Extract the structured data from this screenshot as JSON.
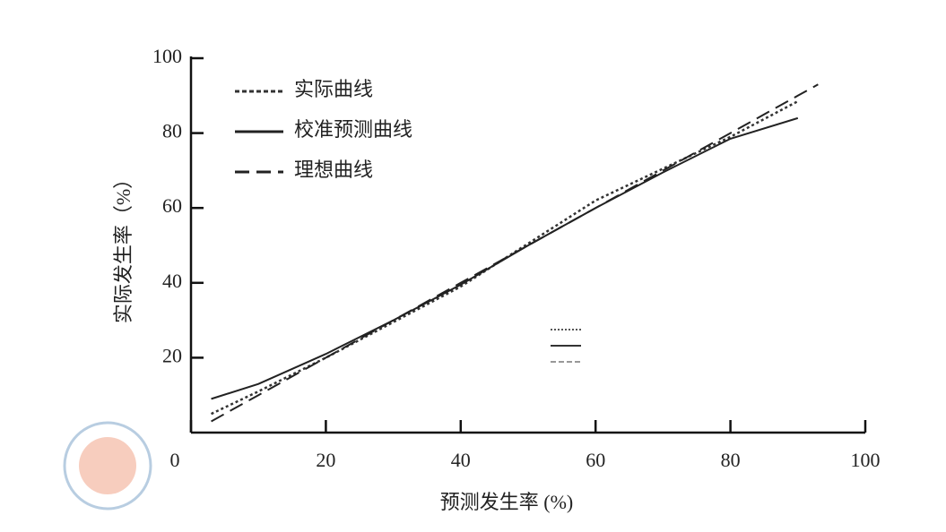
{
  "chart_data": {
    "type": "line",
    "x_label": "预测发生率 (%)",
    "y_label": "实际发生率（%）",
    "x": [
      3,
      10,
      20,
      30,
      40,
      50,
      60,
      70,
      80,
      90,
      93
    ],
    "series": [
      {
        "name": "实际曲线",
        "color": "#333333",
        "style": "dotted",
        "values": [
          5,
          11,
          20,
          29.5,
          39,
          50.5,
          62,
          70.5,
          79,
          88.5,
          null
        ]
      },
      {
        "name": "校准预测曲线",
        "color": "#222222",
        "style": "solid",
        "values": [
          9,
          13,
          21,
          30,
          39.5,
          50,
          60,
          69.5,
          78.5,
          84,
          null
        ]
      },
      {
        "name": "理想曲线",
        "color": "#222222",
        "style": "dashed",
        "values": [
          3,
          10,
          20,
          30,
          40,
          50,
          60,
          70,
          80,
          90,
          93
        ]
      }
    ],
    "xlim": [
      0,
      100
    ],
    "ylim": [
      0,
      100
    ],
    "xticks": [
      0,
      20,
      40,
      60,
      80,
      100
    ],
    "yticks": [
      20,
      40,
      60,
      80,
      100
    ],
    "legend": "upper-left",
    "grid": false
  }
}
